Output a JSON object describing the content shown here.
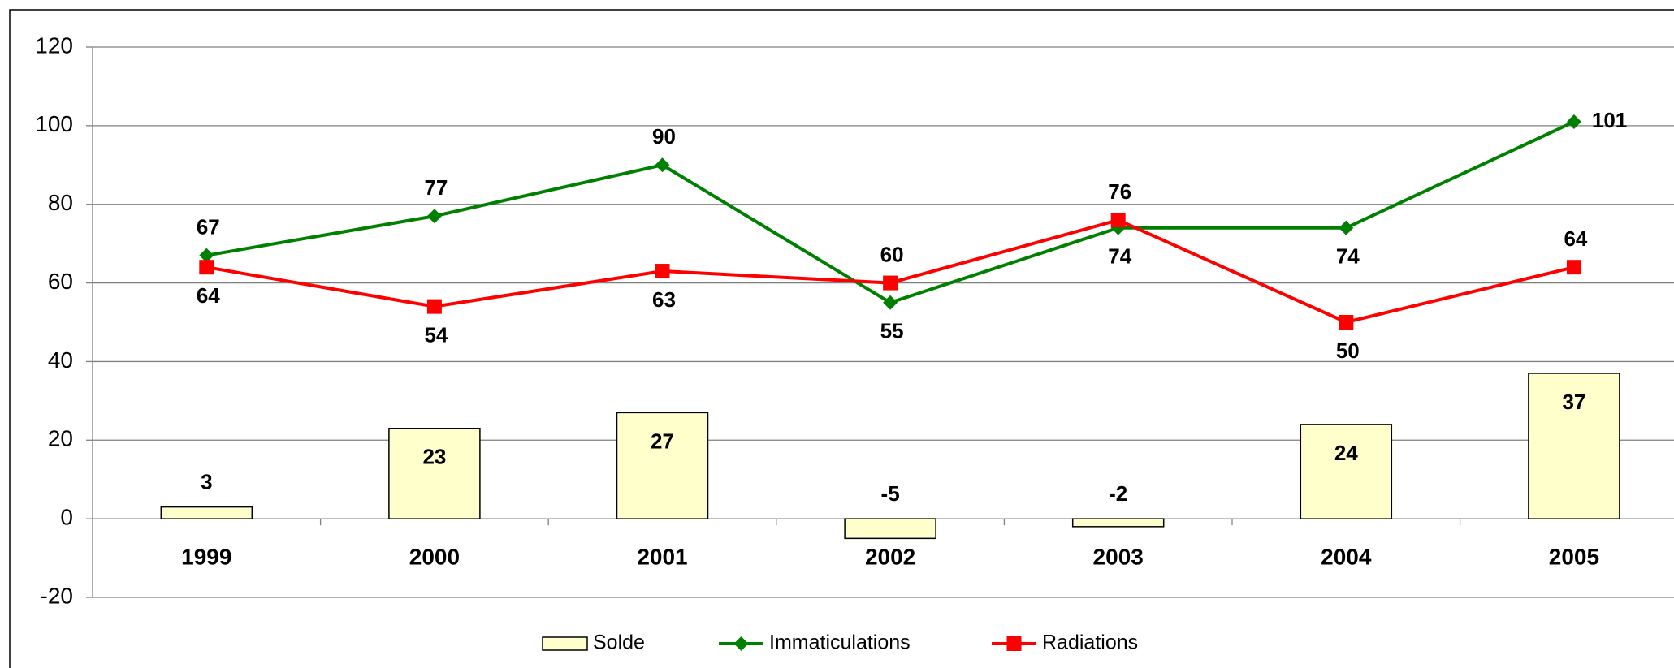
{
  "chart_data": {
    "type": "bar-line",
    "categories": [
      "1999",
      "2000",
      "2001",
      "2002",
      "2003",
      "2004",
      "2005"
    ],
    "series": [
      {
        "name": "Solde",
        "type": "bar",
        "color": "#FFFFCC",
        "values": [
          3,
          23,
          27,
          -5,
          -2,
          24,
          37
        ]
      },
      {
        "name": "Immaticulations",
        "type": "line",
        "marker": "diamond",
        "color": "#008000",
        "values": [
          67,
          77,
          90,
          55,
          74,
          74,
          101
        ]
      },
      {
        "name": "Radiations",
        "type": "line",
        "marker": "square",
        "color": "#FF0000",
        "values": [
          64,
          54,
          63,
          60,
          76,
          50,
          64
        ]
      }
    ],
    "ylim": [
      -20,
      120
    ],
    "yticks": [
      -20,
      0,
      20,
      40,
      60,
      80,
      100,
      120
    ],
    "grid": true,
    "legend": "bottom"
  }
}
